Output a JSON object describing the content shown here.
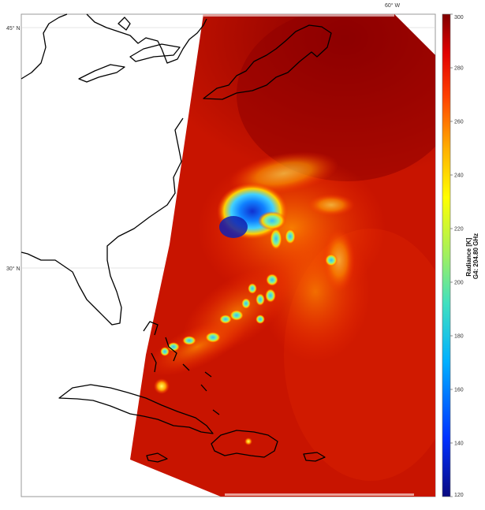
{
  "map": {
    "lat_labels": [
      "45° N",
      "30° N"
    ],
    "lon_labels": [
      "60° W"
    ],
    "grid": true
  },
  "colorbar": {
    "label_line1": "Radiance [K]",
    "label_line2": "G4: 204.80 GHz",
    "ticks": [
      "300",
      "280",
      "260",
      "240",
      "220",
      "200",
      "180",
      "160",
      "140",
      "120"
    ],
    "range": [
      120,
      300
    ],
    "colormap": [
      "#0a0a80",
      "#0030ff",
      "#00b0ff",
      "#40e0c0",
      "#a0f060",
      "#ffff00",
      "#ffb000",
      "#ff4000",
      "#e00000",
      "#800000"
    ]
  },
  "colors": {
    "background_radiance": "#c81400",
    "warm_edge": "#8c0000",
    "coast": "#000000"
  }
}
